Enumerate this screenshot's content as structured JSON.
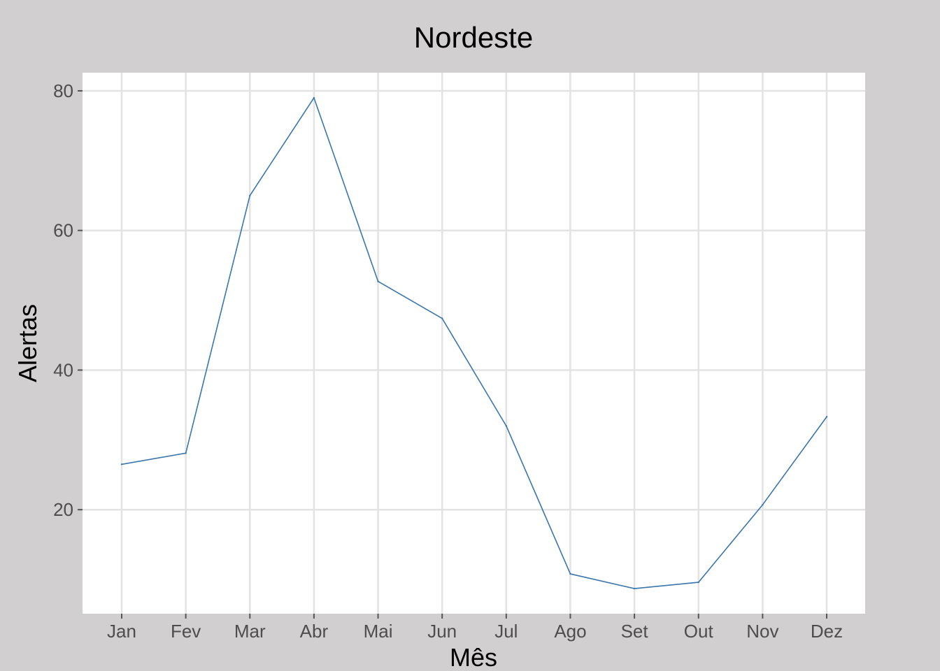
{
  "chart_data": {
    "type": "line",
    "title": "Nordeste",
    "xlabel": "Mês",
    "ylabel": "Alertas",
    "categories": [
      "Jan",
      "Fev",
      "Mar",
      "Abr",
      "Mai",
      "Jun",
      "Jul",
      "Ago",
      "Set",
      "Out",
      "Nov",
      "Dez"
    ],
    "series": [
      {
        "values": [
          26.5,
          28.1,
          65.0,
          79.0,
          52.7,
          47.4,
          32.0,
          10.8,
          8.7,
          9.6,
          20.7,
          33.3
        ]
      }
    ],
    "ylim": [
      5.1,
      82.6
    ],
    "yticks": [
      20,
      40,
      60,
      80
    ],
    "grid": true,
    "legend": "none",
    "colors": {
      "background": "#d1cfd0",
      "panel": "#ffffff",
      "grid": "#e3e3e3",
      "line": "#3a76ad"
    }
  }
}
